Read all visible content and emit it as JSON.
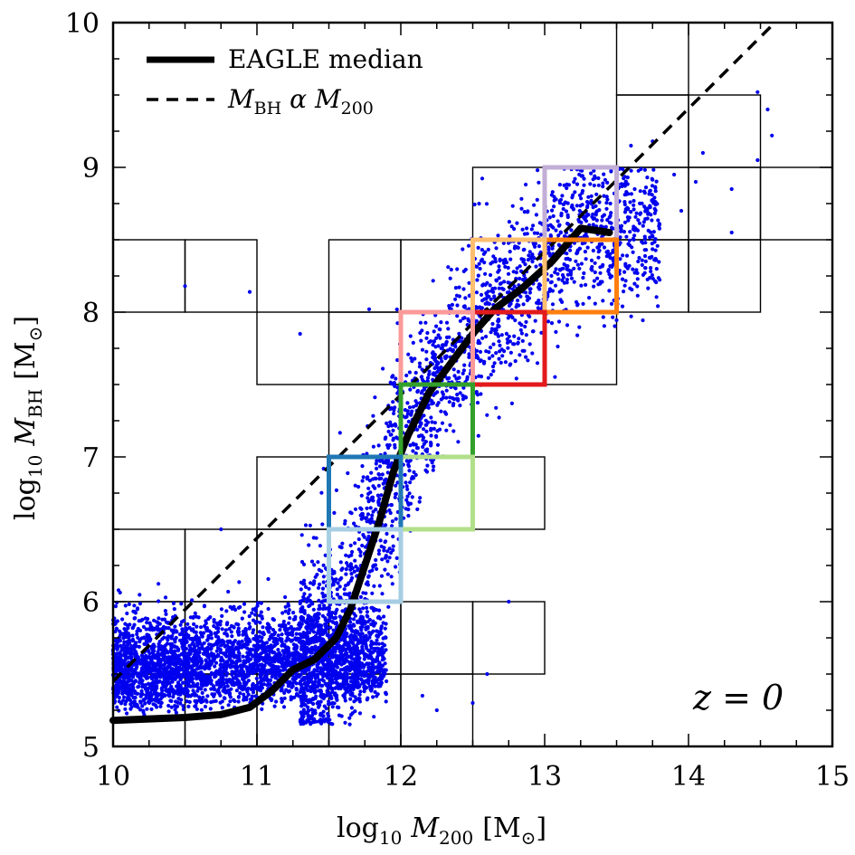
{
  "chart_data": {
    "type": "scatter",
    "xlabel": {
      "prefix": "log",
      "sub": "10",
      "var": "M",
      "varsub": "200",
      "unit": "[M",
      "unitsub": "⊙",
      "close": "]"
    },
    "ylabel": {
      "prefix": "log",
      "sub": "10",
      "var": "M",
      "varsub": "BH",
      "unit": "[M",
      "unitsub": "⊙",
      "close": "]"
    },
    "xlim": [
      10,
      15
    ],
    "ylim": [
      5,
      10
    ],
    "xticks": [
      "10",
      "11",
      "12",
      "13",
      "14",
      "15"
    ],
    "yticks": [
      "5",
      "6",
      "7",
      "8",
      "9",
      "10"
    ],
    "annotation": "z = 0",
    "legend": {
      "position": "top-left",
      "entries": [
        {
          "label": "EAGLE median",
          "style": "solid"
        },
        {
          "label_var": "M",
          "label_varsub": "BH",
          "label_mid": " α ",
          "label_var2": "M",
          "label_var2sub": "200",
          "style": "dashed"
        }
      ]
    },
    "median_curve": {
      "x": [
        10.0,
        10.25,
        10.5,
        10.75,
        10.95,
        11.1,
        11.25,
        11.4,
        11.55,
        11.65,
        11.75,
        11.85,
        11.95,
        12.05,
        12.2,
        12.35,
        12.5,
        12.65,
        12.85,
        13.05,
        13.25,
        13.45
      ],
      "y": [
        5.18,
        5.19,
        5.2,
        5.22,
        5.27,
        5.38,
        5.53,
        5.6,
        5.75,
        5.95,
        6.25,
        6.55,
        6.9,
        7.15,
        7.45,
        7.65,
        7.85,
        8.02,
        8.17,
        8.35,
        8.58,
        8.55
      ]
    },
    "dashed_line": {
      "x": [
        10.0,
        14.6
      ],
      "y": [
        5.45,
        10.0
      ]
    },
    "grid_cells": [
      {
        "x0": 13.5,
        "x1": 14.0,
        "y0": 9.5,
        "y1": 10.0
      },
      {
        "x0": 13.5,
        "x1": 14.0,
        "y0": 9.0,
        "y1": 9.5
      },
      {
        "x0": 14.0,
        "x1": 14.5,
        "y0": 9.0,
        "y1": 9.5
      },
      {
        "x0": 13.0,
        "x1": 13.5,
        "y0": 8.5,
        "y1": 9.0
      },
      {
        "x0": 13.5,
        "x1": 14.0,
        "y0": 8.5,
        "y1": 9.0
      },
      {
        "x0": 14.0,
        "x1": 14.5,
        "y0": 8.5,
        "y1": 9.0
      },
      {
        "x0": 14.5,
        "x1": 15.0,
        "y0": 8.5,
        "y1": 9.0
      },
      {
        "x0": 12.5,
        "x1": 13.0,
        "y0": 8.5,
        "y1": 9.0
      },
      {
        "x0": 10.0,
        "x1": 10.5,
        "y0": 8.0,
        "y1": 8.5
      },
      {
        "x0": 10.5,
        "x1": 11.0,
        "y0": 8.0,
        "y1": 8.5
      },
      {
        "x0": 11.5,
        "x1": 12.0,
        "y0": 8.0,
        "y1": 8.5
      },
      {
        "x0": 12.0,
        "x1": 12.5,
        "y0": 8.0,
        "y1": 8.5
      },
      {
        "x0": 13.5,
        "x1": 14.0,
        "y0": 8.0,
        "y1": 8.5
      },
      {
        "x0": 14.0,
        "x1": 14.5,
        "y0": 8.0,
        "y1": 8.5
      },
      {
        "x0": 11.0,
        "x1": 11.5,
        "y0": 7.5,
        "y1": 8.0
      },
      {
        "x0": 11.5,
        "x1": 12.0,
        "y0": 7.5,
        "y1": 8.0
      },
      {
        "x0": 13.0,
        "x1": 13.5,
        "y0": 7.5,
        "y1": 8.0
      },
      {
        "x0": 11.5,
        "x1": 12.0,
        "y0": 7.0,
        "y1": 7.5
      },
      {
        "x0": 11.0,
        "x1": 11.5,
        "y0": 6.5,
        "y1": 7.0
      },
      {
        "x0": 12.5,
        "x1": 13.0,
        "y0": 6.5,
        "y1": 7.0
      },
      {
        "x0": 10.5,
        "x1": 11.0,
        "y0": 6.0,
        "y1": 6.5
      },
      {
        "x0": 11.0,
        "x1": 11.5,
        "y0": 6.0,
        "y1": 6.5
      },
      {
        "x0": 10.0,
        "x1": 10.5,
        "y0": 6.0,
        "y1": 6.5
      },
      {
        "x0": 10.0,
        "x1": 10.5,
        "y0": 5.5,
        "y1": 6.0
      },
      {
        "x0": 10.5,
        "x1": 11.0,
        "y0": 5.5,
        "y1": 6.0
      },
      {
        "x0": 11.0,
        "x1": 11.5,
        "y0": 5.5,
        "y1": 6.0
      },
      {
        "x0": 11.5,
        "x1": 12.0,
        "y0": 5.5,
        "y1": 6.0
      },
      {
        "x0": 12.0,
        "x1": 12.5,
        "y0": 5.5,
        "y1": 6.0
      },
      {
        "x0": 12.5,
        "x1": 13.0,
        "y0": 5.5,
        "y1": 6.0
      },
      {
        "x0": 10.0,
        "x1": 10.5,
        "y0": 5.0,
        "y1": 5.5
      },
      {
        "x0": 10.5,
        "x1": 11.0,
        "y0": 5.0,
        "y1": 5.5
      },
      {
        "x0": 11.0,
        "x1": 11.5,
        "y0": 5.0,
        "y1": 5.5
      },
      {
        "x0": 11.5,
        "x1": 12.0,
        "y0": 5.0,
        "y1": 5.5
      },
      {
        "x0": 12.0,
        "x1": 12.5,
        "y0": 5.0,
        "y1": 5.5
      }
    ],
    "highlight_bins": [
      {
        "x0": 13.0,
        "x1": 13.5,
        "y0": 8.5,
        "y1": 9.0,
        "color": "#c2aed6"
      },
      {
        "x0": 13.0,
        "x1": 13.5,
        "y0": 8.0,
        "y1": 8.5,
        "color": "#ff7f0e"
      },
      {
        "x0": 12.5,
        "x1": 13.0,
        "y0": 8.0,
        "y1": 8.5,
        "color": "#fdbf6f"
      },
      {
        "x0": 12.5,
        "x1": 13.0,
        "y0": 7.5,
        "y1": 8.0,
        "color": "#e31a1c"
      },
      {
        "x0": 12.0,
        "x1": 12.5,
        "y0": 7.5,
        "y1": 8.0,
        "color": "#fb9a99"
      },
      {
        "x0": 12.0,
        "x1": 12.5,
        "y0": 7.0,
        "y1": 7.5,
        "color": "#33a02c"
      },
      {
        "x0": 12.0,
        "x1": 12.5,
        "y0": 6.5,
        "y1": 7.0,
        "color": "#b2df8a"
      },
      {
        "x0": 11.5,
        "x1": 12.0,
        "y0": 6.5,
        "y1": 7.0,
        "color": "#1f78b4"
      },
      {
        "x0": 11.5,
        "x1": 12.0,
        "y0": 6.0,
        "y1": 6.5,
        "color": "#a6cee3"
      }
    ],
    "scatter_outliers": {
      "x": [
        10.5,
        10.95,
        11.3,
        11.78,
        13.6,
        13.75,
        13.95,
        14.05,
        14.3,
        14.3,
        14.48,
        14.48,
        14.55,
        14.58,
        14.1,
        13.9,
        12.5,
        12.6,
        12.75,
        12.25,
        12.15,
        11.9,
        10.75
      ],
      "y": [
        8.18,
        8.14,
        7.85,
        8.02,
        9.15,
        9.18,
        8.7,
        8.9,
        8.55,
        8.85,
        9.05,
        9.52,
        9.4,
        9.22,
        9.1,
        8.95,
        5.3,
        5.5,
        6.0,
        5.25,
        5.35,
        5.45,
        6.5
      ]
    },
    "scatter_color": "#0000ee",
    "median_color": "#000000"
  }
}
